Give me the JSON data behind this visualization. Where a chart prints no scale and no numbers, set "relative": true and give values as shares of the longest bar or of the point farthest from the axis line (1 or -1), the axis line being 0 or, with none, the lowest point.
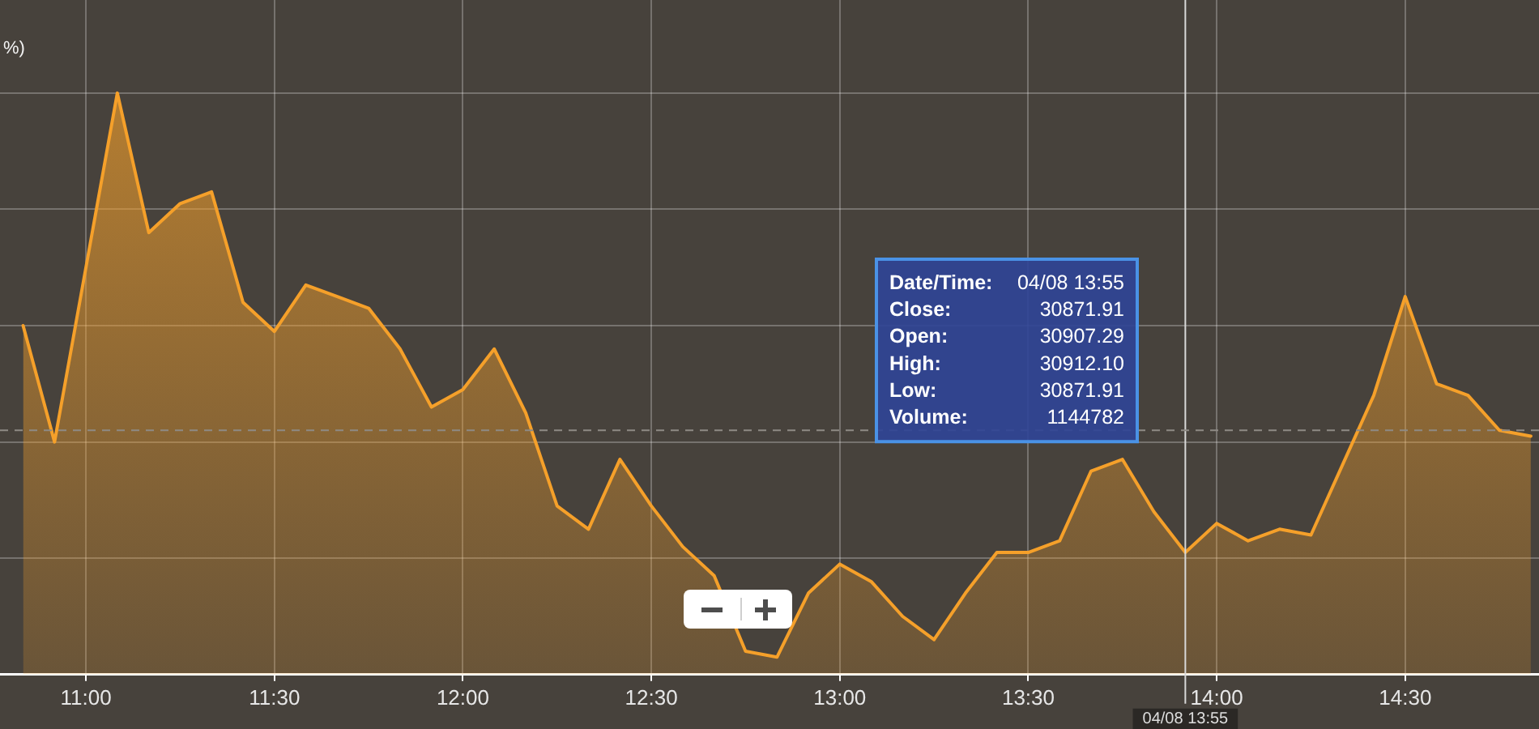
{
  "chart_data": {
    "type": "area",
    "relative": true,
    "color": "#f5a02a",
    "x": [
      10.8333,
      10.9167,
      11,
      11.0833,
      11.1667,
      11.25,
      11.3333,
      11.4167,
      11.5,
      11.5833,
      11.6667,
      11.75,
      11.8333,
      11.9167,
      12,
      12.0833,
      12.1667,
      12.25,
      12.3333,
      12.4167,
      12.5,
      12.5833,
      12.6667,
      12.75,
      12.8333,
      12.9167,
      13,
      13.0833,
      13.1667,
      13.25,
      13.3333,
      13.4167,
      13.5,
      13.5833,
      13.6667,
      13.75,
      13.8333,
      13.9167,
      14,
      14.0833,
      14.1667,
      14.25,
      14.3333,
      14.4167,
      14.5,
      14.5833,
      14.6667,
      14.75,
      14.8333
    ],
    "values": [
      0.6,
      0.4,
      0.7,
      1,
      0.76,
      0.81,
      0.83,
      0.64,
      0.59,
      0.67,
      0.65,
      0.63,
      0.56,
      0.46,
      0.49,
      0.56,
      0.45,
      0.29,
      0.25,
      0.37,
      0.29,
      0.22,
      0.17,
      0.04,
      0.03,
      0.14,
      0.19,
      0.16,
      0.1,
      0.06,
      0.14,
      0.21,
      0.21,
      0.23,
      0.35,
      0.37,
      0.28,
      0.21,
      0.26,
      0.23,
      0.25,
      0.24,
      0.36,
      0.48,
      0.65,
      0.5,
      0.48,
      0.42,
      0.41
    ],
    "xlim": [
      10.772,
      14.855
    ],
    "xticks": [
      {
        "value": 11,
        "label": "11:00"
      },
      {
        "value": 11.5,
        "label": "11:30"
      },
      {
        "value": 12,
        "label": "12:00"
      },
      {
        "value": 12.5,
        "label": "12:30"
      },
      {
        "value": 13,
        "label": "13:00"
      },
      {
        "value": 13.5,
        "label": "13:30"
      },
      {
        "value": 14,
        "label": "14:00"
      },
      {
        "value": 14.5,
        "label": "14:30"
      }
    ],
    "grid": true,
    "line_style": "solid",
    "ref_lines": [
      {
        "axis": "x",
        "value": 13.9167,
        "color": "#d8d8d8"
      },
      {
        "axis": "y",
        "value": 0.42,
        "color": "#8e8a85",
        "line_style": "dashed"
      }
    ],
    "annotations": [
      "%)",
      "Date/Time:",
      "04/08 13:55",
      "Close:",
      "30871.91",
      "Open:",
      "30907.29",
      "High:",
      "30912.10",
      "Low:",
      "30871.91",
      "Volume:",
      "1144782",
      {
        "text": "04/08 13:55",
        "x": 13.9167,
        "y": 0
      }
    ]
  }
}
